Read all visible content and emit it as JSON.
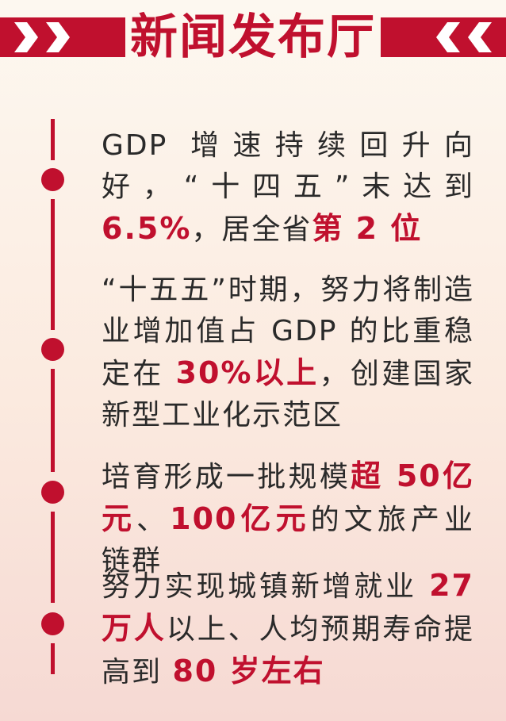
{
  "header": {
    "title": "新闻发布厅"
  },
  "items": [
    {
      "parts": [
        {
          "text": "GDP 增速持续回升向好，“十四五”末达到",
          "hl": false
        },
        {
          "text": "6.5%",
          "hl": true
        },
        {
          "text": "，居全省",
          "hl": false
        },
        {
          "text": "第 2 位",
          "hl": true
        }
      ]
    },
    {
      "parts": [
        {
          "text": "“十五五”时期，努力将制造业增加值占 GDP 的比重稳定在 ",
          "hl": false
        },
        {
          "text": "30%以上",
          "hl": true
        },
        {
          "text": "，创建国家新型工业化示范区",
          "hl": false
        }
      ]
    },
    {
      "parts": [
        {
          "text": "培育形成一批规模",
          "hl": false
        },
        {
          "text": "超 50亿元",
          "hl": true
        },
        {
          "text": "、",
          "hl": false
        },
        {
          "text": "100亿元",
          "hl": true
        },
        {
          "text": "的文旅产业链群",
          "hl": false
        }
      ]
    },
    {
      "parts": [
        {
          "text": "努力实现城镇新增就业 ",
          "hl": false
        },
        {
          "text": "27 万人",
          "hl": true
        },
        {
          "text": "以上、人均预期寿命提高到 ",
          "hl": false
        },
        {
          "text": "80 岁左右",
          "hl": true
        }
      ]
    }
  ],
  "colors": {
    "accent": "#c0102e",
    "text": "#2a2a2a"
  }
}
